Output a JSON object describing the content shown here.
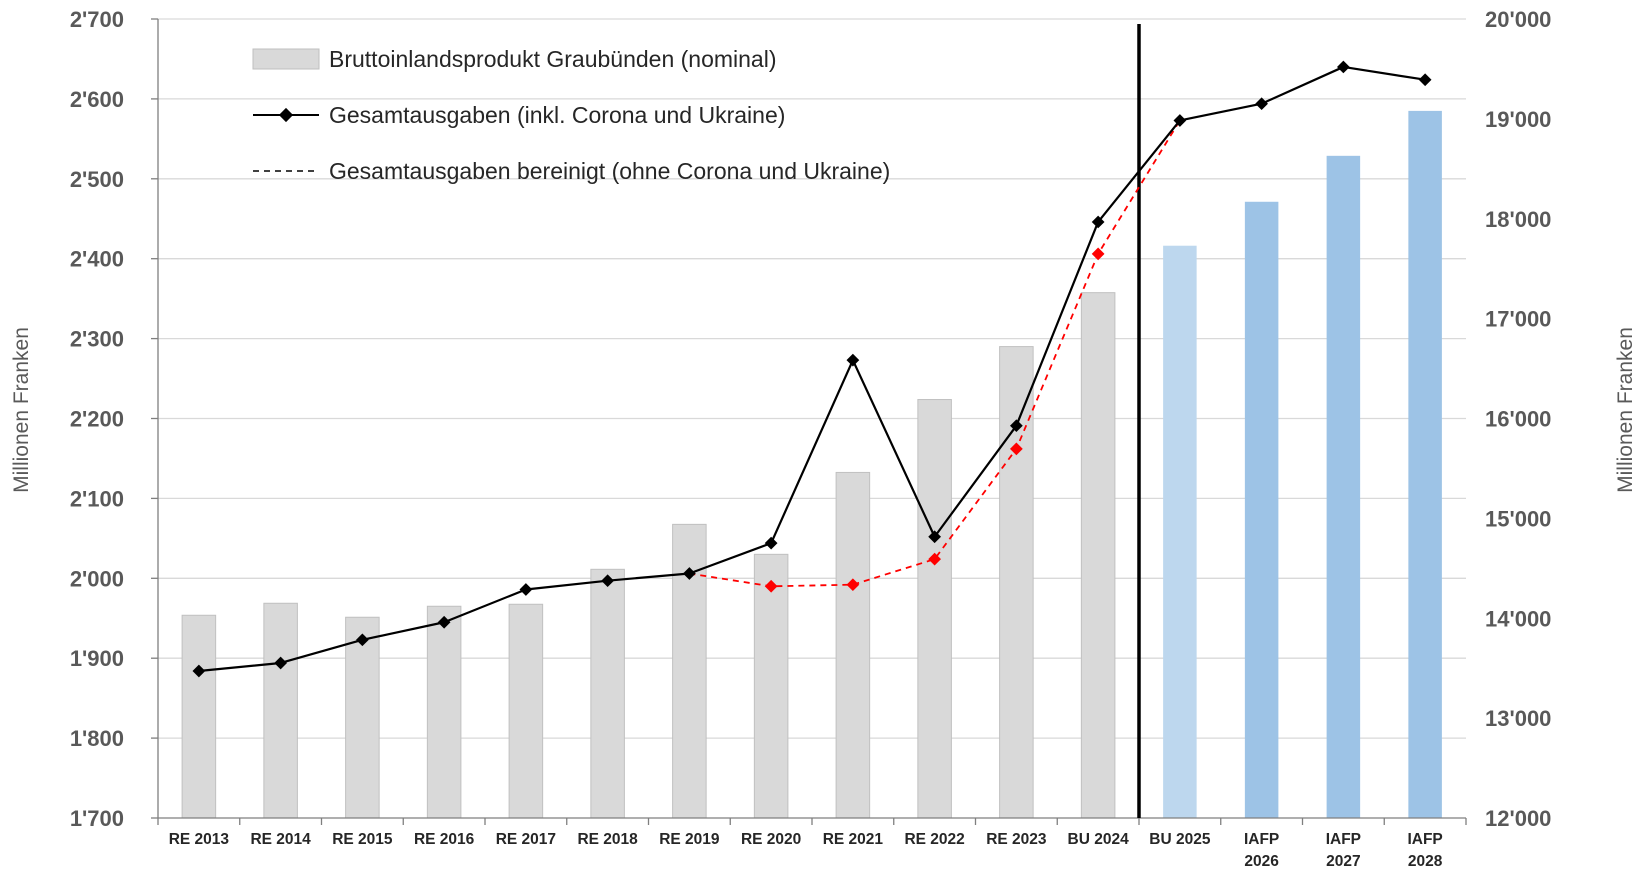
{
  "chart_data": {
    "type": "bar",
    "categories": [
      [
        "RE 2013"
      ],
      [
        "RE 2014"
      ],
      [
        "RE 2015"
      ],
      [
        "RE 2016"
      ],
      [
        "RE 2017"
      ],
      [
        "RE 2018"
      ],
      [
        "RE 2019"
      ],
      [
        "RE 2020"
      ],
      [
        "RE 2021"
      ],
      [
        "RE 2022"
      ],
      [
        "RE 2023"
      ],
      [
        "BU 2024"
      ],
      [
        "BU 2025"
      ],
      [
        "IAFP",
        "2026"
      ],
      [
        "IAFP",
        "2027"
      ],
      [
        "IAFP",
        "2028"
      ]
    ],
    "y_left": {
      "label": "Millionen Franken",
      "range": [
        1700,
        2700
      ],
      "ticks": [
        1700,
        1800,
        1900,
        2000,
        2100,
        2200,
        2300,
        2400,
        2500,
        2600,
        2700
      ],
      "tick_labels": [
        "1'700",
        "1'800",
        "1'900",
        "2'000",
        "2'100",
        "2'200",
        "2'300",
        "2'400",
        "2'500",
        "2'600",
        "2'700"
      ]
    },
    "y_right": {
      "label": "Millionen Franken",
      "range": [
        12000,
        20000
      ],
      "ticks": [
        12000,
        13000,
        14000,
        15000,
        16000,
        17000,
        18000,
        19000,
        20000
      ],
      "tick_labels": [
        "12'000",
        "13'000",
        "14'000",
        "15'000",
        "16'000",
        "17'000",
        "18'000",
        "19'000",
        "20'000"
      ]
    },
    "series": [
      {
        "name": "Bruttoinlandsprodukt Graubünden (nominal)",
        "type": "bar",
        "axis": "right",
        "values": [
          14030,
          14150,
          14010,
          14120,
          14140,
          14490,
          14940,
          14640,
          15460,
          16190,
          16720,
          17260,
          17730,
          18170,
          18630,
          19080
        ],
        "colors": [
          "#d9d9d9",
          "#d9d9d9",
          "#d9d9d9",
          "#d9d9d9",
          "#d9d9d9",
          "#d9d9d9",
          "#d9d9d9",
          "#d9d9d9",
          "#d9d9d9",
          "#d9d9d9",
          "#d9d9d9",
          "#d9d9d9",
          "#bdd7ee",
          "#9dc3e6",
          "#9dc3e6",
          "#9dc3e6"
        ]
      },
      {
        "name": "Gesamtausgaben (inkl. Corona und Ukraine)",
        "type": "line",
        "axis": "left",
        "color": "#000000",
        "values": [
          1884,
          1894,
          1923,
          1945,
          1986,
          1997,
          2006,
          2044,
          2273,
          2052,
          2191,
          2446,
          2573,
          2594,
          2640,
          2624
        ]
      },
      {
        "name": "Gesamtausgaben bereinigt (ohne Corona und Ukraine)",
        "type": "line",
        "axis": "left",
        "color": "#ff0000",
        "dashed": true,
        "values": [
          null,
          null,
          null,
          null,
          null,
          null,
          2006,
          1990,
          1992,
          2024,
          2162,
          2406,
          2573,
          null,
          null,
          null
        ]
      }
    ],
    "divider_after_category": "BU 2024",
    "grid": true,
    "legend_position": "top-left"
  }
}
